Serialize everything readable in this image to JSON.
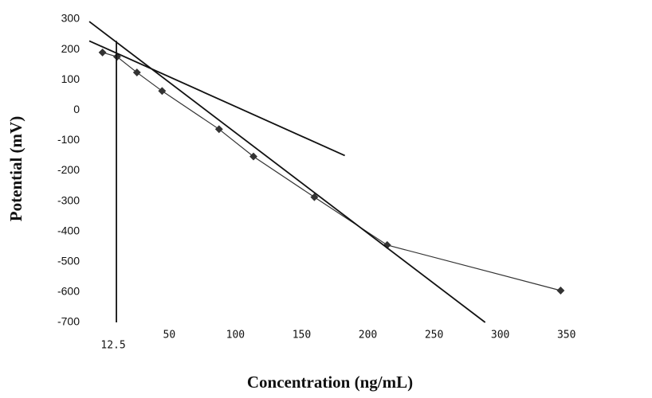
{
  "chart_data": {
    "type": "line",
    "x_label": "Concentration (ng/mL)",
    "y_label": "Potential (mV)",
    "xlim": [
      -8,
      417
    ],
    "ylim": [
      -700,
      300
    ],
    "xticks": [
      12.5,
      50,
      100,
      150,
      200,
      250,
      300,
      350
    ],
    "yticks": [
      -700,
      -600,
      -500,
      -400,
      -300,
      -200,
      -100,
      0,
      100,
      200,
      300
    ],
    "series": [
      {
        "color": "#333333",
        "marker": true,
        "x": [
          2,
          13,
          28,
          47,
          90,
          116,
          162,
          217,
          348
        ],
        "values": [
          190,
          176,
          124,
          63,
          -63,
          -153,
          -287,
          -445,
          -595
        ]
      },
      {
        "color": "#111111",
        "marker": false,
        "x": [
          -8,
          185
        ],
        "values": [
          228,
          -150
        ]
      },
      {
        "color": "#111111",
        "marker": false,
        "x": [
          -8,
          291
        ],
        "values": [
          292,
          -700
        ]
      },
      {
        "color": "#111111",
        "marker": false,
        "x": [
          12.5,
          12.5
        ],
        "values": [
          -700,
          228
        ]
      }
    ]
  }
}
